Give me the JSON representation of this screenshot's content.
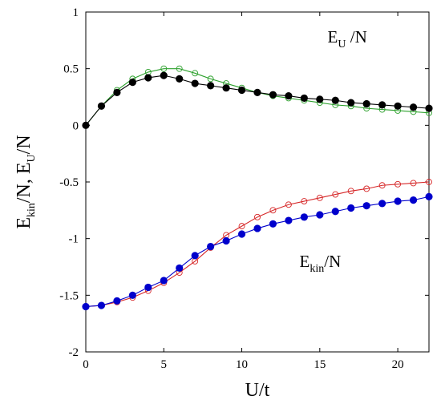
{
  "chart_data": {
    "type": "line",
    "xlabel": "U/t",
    "ylabel": {
      "base1": "E",
      "sub1": "kin",
      "mid": "/N, E",
      "sub2": "U",
      "end": "/N"
    },
    "xlim": [
      0,
      22
    ],
    "ylim": [
      -2,
      1
    ],
    "xticks": [
      "0",
      "5",
      "10",
      "15",
      "20"
    ],
    "yticks": [
      "-2",
      "-1.5",
      "-1",
      "-0.5",
      "0",
      "0.5",
      "1"
    ],
    "grid": false,
    "annotations": [
      {
        "id": "eu",
        "base": "E",
        "sub": "U",
        "rest": " /N",
        "x": 15.5,
        "y": 0.73
      },
      {
        "id": "ekin",
        "base": "E",
        "sub": "kin",
        "rest": "/N",
        "x": 13.7,
        "y": -1.25
      }
    ],
    "series": [
      {
        "id": "eu-open",
        "color": "#2ca02c",
        "marker": "open-circle",
        "x": [
          0,
          1,
          2,
          3,
          4,
          5,
          6,
          7,
          8,
          9,
          10,
          11,
          12,
          13,
          14,
          15,
          16,
          17,
          18,
          19,
          20,
          21,
          22
        ],
        "y": [
          0.0,
          0.17,
          0.31,
          0.41,
          0.47,
          0.5,
          0.5,
          0.46,
          0.41,
          0.37,
          0.33,
          0.29,
          0.26,
          0.24,
          0.22,
          0.2,
          0.18,
          0.17,
          0.15,
          0.14,
          0.13,
          0.12,
          0.11
        ]
      },
      {
        "id": "eu-filled",
        "color": "#000000",
        "marker": "filled-circle",
        "x": [
          0,
          1,
          2,
          3,
          4,
          5,
          6,
          7,
          8,
          9,
          10,
          11,
          12,
          13,
          14,
          15,
          16,
          17,
          18,
          19,
          20,
          21,
          22
        ],
        "y": [
          0.0,
          0.17,
          0.29,
          0.38,
          0.42,
          0.44,
          0.41,
          0.37,
          0.35,
          0.33,
          0.31,
          0.29,
          0.27,
          0.26,
          0.24,
          0.23,
          0.22,
          0.2,
          0.19,
          0.18,
          0.17,
          0.16,
          0.15
        ]
      },
      {
        "id": "ekin-open",
        "color": "#d62728",
        "marker": "open-circle",
        "x": [
          0,
          1,
          2,
          3,
          4,
          5,
          6,
          7,
          8,
          9,
          10,
          11,
          12,
          13,
          14,
          15,
          16,
          17,
          18,
          19,
          20,
          21,
          22
        ],
        "y": [
          -1.6,
          -1.59,
          -1.56,
          -1.52,
          -1.46,
          -1.39,
          -1.3,
          -1.2,
          -1.08,
          -0.97,
          -0.89,
          -0.81,
          -0.75,
          -0.7,
          -0.67,
          -0.64,
          -0.61,
          -0.58,
          -0.56,
          -0.53,
          -0.52,
          -0.51,
          -0.5
        ]
      },
      {
        "id": "ekin-filled",
        "color": "#0000cc",
        "marker": "filled-circle",
        "x": [
          0,
          1,
          2,
          3,
          4,
          5,
          6,
          7,
          8,
          9,
          10,
          11,
          12,
          13,
          14,
          15,
          16,
          17,
          18,
          19,
          20,
          21,
          22
        ],
        "y": [
          -1.6,
          -1.59,
          -1.55,
          -1.5,
          -1.43,
          -1.37,
          -1.26,
          -1.15,
          -1.07,
          -1.02,
          -0.96,
          -0.91,
          -0.87,
          -0.84,
          -0.81,
          -0.79,
          -0.76,
          -0.73,
          -0.71,
          -0.69,
          -0.67,
          -0.66,
          -0.63
        ]
      }
    ]
  }
}
